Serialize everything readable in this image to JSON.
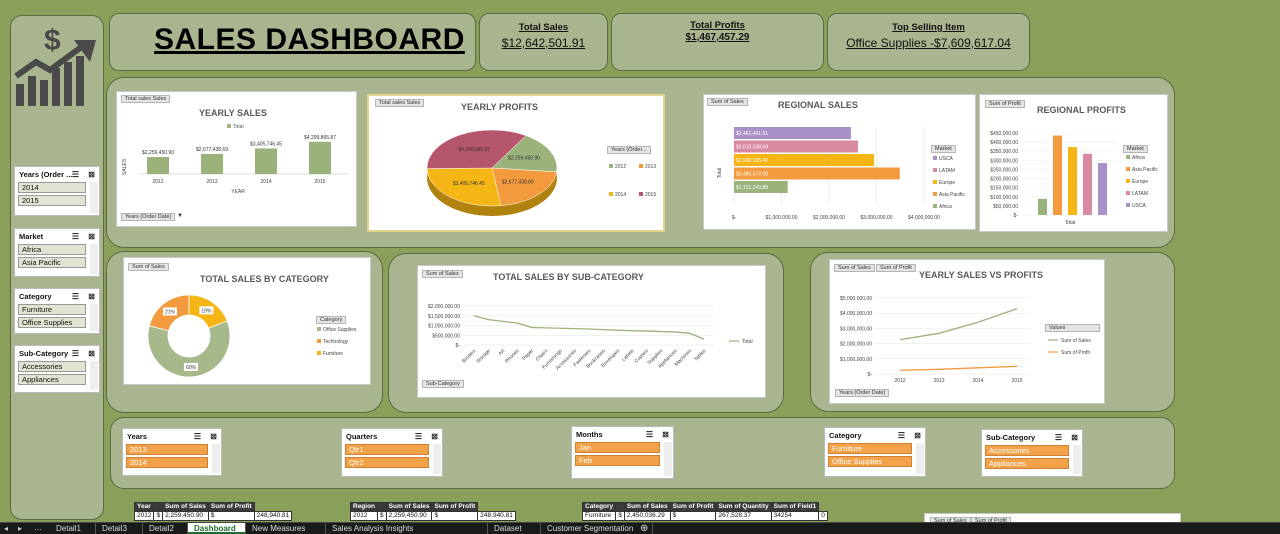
{
  "title": "SALES DASHBOARD",
  "kpis": [
    {
      "title": "Total Sales",
      "value": "$12,642,501.91"
    },
    {
      "title": "Total Profits",
      "value": "$1,467,457.29"
    },
    {
      "title": "Top Selling Item",
      "value": "Office Supplies -$7,609,617.04"
    }
  ],
  "left_slicers": [
    {
      "title": "Years (Order ...",
      "items": [
        "2014",
        "2015"
      ]
    },
    {
      "title": "Market",
      "items": [
        "Africa",
        "Asia Pacific"
      ]
    },
    {
      "title": "Category",
      "items": [
        "Furniture",
        "Office Supplies"
      ]
    },
    {
      "title": "Sub-Category",
      "items": [
        "Accessories",
        "Appliances"
      ]
    }
  ],
  "bottom_slicers": [
    {
      "title": "Years",
      "items": [
        "2013",
        "2014"
      ]
    },
    {
      "title": "Quarters",
      "items": [
        "Qtr1",
        "Qtr2"
      ]
    },
    {
      "title": "Months",
      "items": [
        "Jan",
        "Feb"
      ]
    },
    {
      "title": "Category",
      "items": [
        "Furniture",
        "Office Supplies"
      ]
    },
    {
      "title": "Sub-Category",
      "items": [
        "Accessories",
        "Appliances"
      ]
    }
  ],
  "charts": {
    "yearly_sales": {
      "title": "YEARLY SALES",
      "btn_top": "Total sales  Sales",
      "btn_bottom": "Years (Order Date)",
      "legend": "Total",
      "xlabel": "YEAR",
      "ylabel": "SALES"
    },
    "yearly_profits": {
      "title": "YEARLY PROFITS",
      "btn_top": "Total sales  Sales",
      "btn_side": "Years (Order..."
    },
    "regional_sales": {
      "title": "REGIONAL SALES",
      "btn_top": "Sum of Sales",
      "btn_legend": "Market",
      "ylabel": "Total"
    },
    "regional_profits": {
      "title": "REGIONAL PROFITS",
      "btn_top": "Sum of Profit",
      "btn_legend": "Market",
      "xlabel": "Total"
    },
    "sales_by_category": {
      "title": "TOTAL SALES BY CATEGORY",
      "btn_top": "Sum of Sales",
      "btn_legend": "Category"
    },
    "sales_by_subcategory": {
      "title": "TOTAL SALES BY SUB-CATEGORY",
      "btn_top": "Sum of Sales",
      "btn_bottom": "Sub-Category",
      "legend": "Total"
    },
    "yearly_vs": {
      "title": "YEARLY SALES VS PROFITS",
      "btn_top1": "Sum of Sales",
      "btn_top2": "Sum of Profit",
      "btn_legend": "Values",
      "btn_bottom": "Years (Order Date)"
    },
    "extra": {
      "btn_top1": "Sum of Sales",
      "btn_top2": "Sum of Profit"
    }
  },
  "chart_data": [
    {
      "type": "bar",
      "title": "YEARLY SALES",
      "categories": [
        "2012",
        "2013",
        "2014",
        "2015"
      ],
      "values": [
        2259450.9,
        2677438.69,
        3405746.45,
        4299865.87
      ],
      "labels": [
        "$2,259,450.90",
        "$2,677,438.69",
        "$3,405,746.45",
        "$4,299,865.87"
      ],
      "xlabel": "YEAR",
      "ylabel": "SALES",
      "series": [
        {
          "name": "Total",
          "color": "#9bb27b"
        }
      ]
    },
    {
      "type": "pie",
      "title": "YEARLY PROFITS",
      "categories": [
        "2012",
        "2013",
        "2014",
        "2015"
      ],
      "values": [
        2259450.9,
        2677438.69,
        3405746.45,
        4299865.87
      ],
      "labels": [
        "$2,259,450.90",
        "$2,677,438.69",
        "$3,405,746.45",
        "$4,299,865.87"
      ],
      "colors": [
        "#9bb27b",
        "#f39a3e",
        "#f5b615",
        "#b5566c"
      ]
    },
    {
      "type": "bar",
      "title": "REGIONAL SALES",
      "categories": [
        "Africa",
        "Asia Pacific",
        "Europe",
        "LATAM",
        "USCA"
      ],
      "values": [
        1131243.88,
        3489572.08,
        2950185.46,
        2610038.58,
        2461461.91
      ],
      "labels": [
        "$1,131,243.88",
        "$3,489,572.08",
        "$2,950,185.46",
        "$2,610,038.58",
        "$2,461,461.91"
      ],
      "colors": [
        "#9bb27b",
        "#f39a3e",
        "#f5b615",
        "#d98aa0",
        "#a890c8"
      ],
      "xticks": [
        "$-",
        "$1,000,000.00",
        "$2,000,000.00",
        "$3,000,000.00",
        "$4,000,000.00"
      ],
      "xlim": [
        0,
        4000000
      ]
    },
    {
      "type": "bar",
      "title": "REGIONAL PROFITS",
      "categories": [
        "Africa",
        "Asia Pacific",
        "Europe",
        "LATAM",
        "USCA"
      ],
      "values": [
        88900,
        436000,
        372800,
        335800,
        285000
      ],
      "colors": [
        "#9bb27b",
        "#f39a3e",
        "#f5b615",
        "#d98aa0",
        "#a890c8"
      ],
      "yticks": [
        "$450,000.00",
        "$400,000.00",
        "$350,000.00",
        "$300,000.00",
        "$250,000.00",
        "$200,000.00",
        "$150,000.00",
        "$100,000.00",
        "$50,000.00",
        "$-"
      ],
      "ylim": [
        0,
        450000
      ]
    },
    {
      "type": "pie",
      "title": "TOTAL SALES BY CATEGORY",
      "categories": [
        "Office Supplies",
        "Technology",
        "Furniture"
      ],
      "values": [
        60,
        21,
        19
      ],
      "labels": [
        "60%",
        "21%",
        "19%"
      ],
      "colors": [
        "#a7b98a",
        "#f39a3e",
        "#f5b615"
      ]
    },
    {
      "type": "line",
      "title": "TOTAL SALES BY SUB-CATEGORY",
      "categories": [
        "Binders",
        "Storage",
        "Art",
        "Phones",
        "Paper",
        "Chairs",
        "Furnishings",
        "Accessories",
        "Fasteners",
        "Bookcases",
        "Envelopes",
        "Labels",
        "Copiers",
        "Supplies",
        "Appliances",
        "Machines",
        "Tables"
      ],
      "values": [
        1500000,
        1300000,
        1210000,
        1130000,
        900000,
        880000,
        860000,
        840000,
        820000,
        790000,
        760000,
        730000,
        720000,
        690000,
        670000,
        600000,
        300000
      ],
      "yticks": [
        "$2,000,000.00",
        "$1,500,000.00",
        "$1,000,000.00",
        "$500,000.00",
        "$-"
      ],
      "ylim": [
        0,
        2000000
      ],
      "series": [
        {
          "name": "Total",
          "color": "#9bb27b"
        }
      ]
    },
    {
      "type": "line",
      "title": "YEARLY SALES VS PROFITS",
      "categories": [
        "2012",
        "2013",
        "2014",
        "2015"
      ],
      "yticks": [
        "$5,000,000.00",
        "$4,000,000.00",
        "$3,000,000.00",
        "$2,000,000.00",
        "$1,000,000.00",
        "$-"
      ],
      "ylim": [
        0,
        5000000
      ],
      "series": [
        {
          "name": "Sum of Sales",
          "color": "#9bb27b",
          "values": [
            2259450.9,
            2677438.69,
            3405746.45,
            4299865.87
          ]
        },
        {
          "name": "Sum of Profit",
          "color": "#f39a3e",
          "values": [
            248940.81,
            307415.28,
            406935.23,
            504165.97
          ]
        }
      ]
    }
  ],
  "pivots": [
    {
      "headers": [
        "Year",
        "",
        "Sum of Sales",
        "Sum of Profit"
      ],
      "row": [
        "2012",
        "$",
        "2,259,450.90",
        "$",
        "248,940.81"
      ]
    },
    {
      "headers": [
        "Region",
        "",
        "Sum of Sales",
        "Sum of Profit"
      ],
      "row": [
        "2012",
        "$",
        "2,259,450.90",
        "$",
        "248,940.81"
      ]
    },
    {
      "headers": [
        "Category",
        "",
        "Sum of Sales",
        "Sum of Profit",
        "Sum of Quantity",
        "Sum of Field1"
      ],
      "row": [
        "Furniture",
        "$",
        "2,450,036.29",
        "$",
        "267,528.37",
        "34254",
        "0"
      ]
    }
  ],
  "tabs": [
    "Detail1",
    "Detail3",
    "Detail2",
    "Dashboard",
    "New Measures",
    "Sales Analysis Insights",
    "Dataset",
    "Customer Segmentation"
  ],
  "active_tab": "Dashboard",
  "colors": {
    "background": "#8aa05a",
    "panel": "#a9b58e",
    "accent_orange": "#f39a3e",
    "accent_green": "#9bb27b"
  }
}
